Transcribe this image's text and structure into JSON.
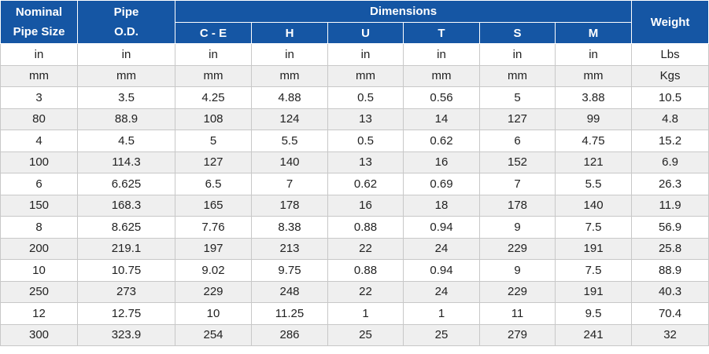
{
  "header": {
    "nominal": [
      "Nominal",
      "Pipe Size"
    ],
    "pipe_od": [
      "Pipe",
      "O.D."
    ],
    "dimensions": "Dimensions",
    "weight": "Weight",
    "dims": [
      "C - E",
      "H",
      "U",
      "T",
      "S",
      "M"
    ]
  },
  "rows": [
    [
      "in",
      "in",
      "in",
      "in",
      "in",
      "in",
      "in",
      "in",
      "Lbs"
    ],
    [
      "mm",
      "mm",
      "mm",
      "mm",
      "mm",
      "mm",
      "mm",
      "mm",
      "Kgs"
    ],
    [
      "3",
      "3.5",
      "4.25",
      "4.88",
      "0.5",
      "0.56",
      "5",
      "3.88",
      "10.5"
    ],
    [
      "80",
      "88.9",
      "108",
      "124",
      "13",
      "14",
      "127",
      "99",
      "4.8"
    ],
    [
      "4",
      "4.5",
      "5",
      "5.5",
      "0.5",
      "0.62",
      "6",
      "4.75",
      "15.2"
    ],
    [
      "100",
      "114.3",
      "127",
      "140",
      "13",
      "16",
      "152",
      "121",
      "6.9"
    ],
    [
      "6",
      "6.625",
      "6.5",
      "7",
      "0.62",
      "0.69",
      "7",
      "5.5",
      "26.3"
    ],
    [
      "150",
      "168.3",
      "165",
      "178",
      "16",
      "18",
      "178",
      "140",
      "11.9"
    ],
    [
      "8",
      "8.625",
      "7.76",
      "8.38",
      "0.88",
      "0.94",
      "9",
      "7.5",
      "56.9"
    ],
    [
      "200",
      "219.1",
      "197",
      "213",
      "22",
      "24",
      "229",
      "191",
      "25.8"
    ],
    [
      "10",
      "10.75",
      "9.02",
      "9.75",
      "0.88",
      "0.94",
      "9",
      "7.5",
      "88.9"
    ],
    [
      "250",
      "273",
      "229",
      "248",
      "22",
      "24",
      "229",
      "191",
      "40.3"
    ],
    [
      "12",
      "12.75",
      "10",
      "11.25",
      "1",
      "1",
      "11",
      "9.5",
      "70.4"
    ],
    [
      "300",
      "323.9",
      "254",
      "286",
      "25",
      "25",
      "279",
      "241",
      "32"
    ]
  ]
}
